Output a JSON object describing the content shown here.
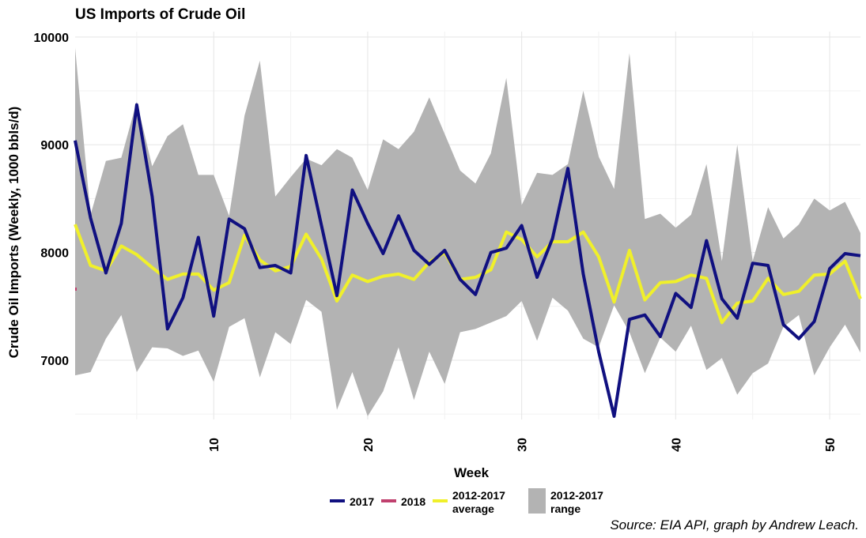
{
  "chart_data": {
    "type": "line",
    "title": "US Imports of Crude Oil",
    "xlabel": "Week",
    "ylabel": "Crude Oil Imports (Weekly, 1000 bbls/d)",
    "caption": "Source: EIA API, graph by Andrew Leach.",
    "xlim": [
      1,
      52
    ],
    "ylim": [
      6450,
      10050
    ],
    "x_ticks": [
      10,
      20,
      30,
      40,
      50
    ],
    "y_ticks": [
      7000,
      8000,
      9000,
      10000
    ],
    "grid": true,
    "legend_position": "bottom",
    "legend": [
      {
        "label": "2017",
        "color": "#101080",
        "kind": "line"
      },
      {
        "label": "2018",
        "color": "#c0406e",
        "kind": "line"
      },
      {
        "label_lines": [
          "2012-2017",
          "average"
        ],
        "color": "#f0f02a",
        "kind": "line"
      },
      {
        "label_lines": [
          "2012-2017",
          "range"
        ],
        "color": "#b3b3b3",
        "kind": "fill"
      }
    ],
    "weeks": [
      1,
      2,
      3,
      4,
      5,
      6,
      7,
      8,
      9,
      10,
      11,
      12,
      13,
      14,
      15,
      16,
      17,
      18,
      19,
      20,
      21,
      22,
      23,
      24,
      25,
      26,
      27,
      28,
      29,
      30,
      31,
      32,
      33,
      34,
      35,
      36,
      37,
      38,
      39,
      40,
      41,
      42,
      43,
      44,
      45,
      46,
      47,
      48,
      49,
      50,
      51,
      52
    ],
    "series": [
      {
        "name": "2012-2017 range",
        "color": "#b3b3b3",
        "upper": [
          9900,
          8350,
          8850,
          8880,
          9400,
          8800,
          9080,
          9190,
          8720,
          8720,
          8340,
          9270,
          9780,
          8520,
          8700,
          8870,
          8810,
          8960,
          8880,
          8580,
          9050,
          8960,
          9120,
          9440,
          9100,
          8760,
          8640,
          8920,
          9620,
          8440,
          8740,
          8720,
          8820,
          9500,
          8890,
          8590,
          9850,
          8310,
          8360,
          8230,
          8350,
          8820,
          7920,
          9000,
          7920,
          8420,
          8130,
          8260,
          8500,
          8390,
          8470,
          8180
        ],
        "lower": [
          6860,
          6890,
          7200,
          7420,
          6890,
          7120,
          7110,
          7040,
          7090,
          6800,
          7310,
          7390,
          6840,
          7260,
          7150,
          7560,
          7450,
          6540,
          6890,
          6480,
          6710,
          7120,
          6630,
          7080,
          6780,
          7260,
          7290,
          7350,
          7410,
          7550,
          7180,
          7580,
          7460,
          7200,
          7120,
          7510,
          7260,
          6880,
          7210,
          7080,
          7320,
          6910,
          7020,
          6680,
          6880,
          6970,
          7310,
          7420,
          6860,
          7120,
          7330,
          7070
        ]
      },
      {
        "name": "2012-2017 average",
        "color": "#f0f02a",
        "values": [
          8260,
          7880,
          7830,
          8060,
          7980,
          7860,
          7750,
          7800,
          7800,
          7650,
          7720,
          8160,
          7930,
          7830,
          7870,
          8170,
          7940,
          7550,
          7790,
          7730,
          7780,
          7800,
          7750,
          7910,
          8000,
          7750,
          7770,
          7840,
          8190,
          8120,
          7960,
          8100,
          8100,
          8190,
          7960,
          7540,
          8020,
          7560,
          7720,
          7730,
          7790,
          7760,
          7350,
          7530,
          7550,
          7760,
          7610,
          7640,
          7790,
          7800,
          7920,
          7570
        ]
      },
      {
        "name": "2017",
        "color": "#101080",
        "values": [
          9040,
          8320,
          7810,
          8270,
          9370,
          8520,
          7290,
          7580,
          8140,
          7410,
          8310,
          8220,
          7860,
          7880,
          7810,
          8900,
          8250,
          7600,
          8580,
          8270,
          7990,
          8340,
          8020,
          7890,
          8020,
          7750,
          7610,
          8000,
          8040,
          8250,
          7770,
          8130,
          8780,
          7800,
          7080,
          6480,
          7380,
          7420,
          7220,
          7620,
          7490,
          8110,
          7570,
          7390,
          7900,
          7880,
          7330,
          7200,
          7360,
          7850,
          7990,
          7970
        ]
      },
      {
        "name": "2018",
        "color": "#c0406e",
        "values": [
          7660
        ]
      }
    ]
  }
}
